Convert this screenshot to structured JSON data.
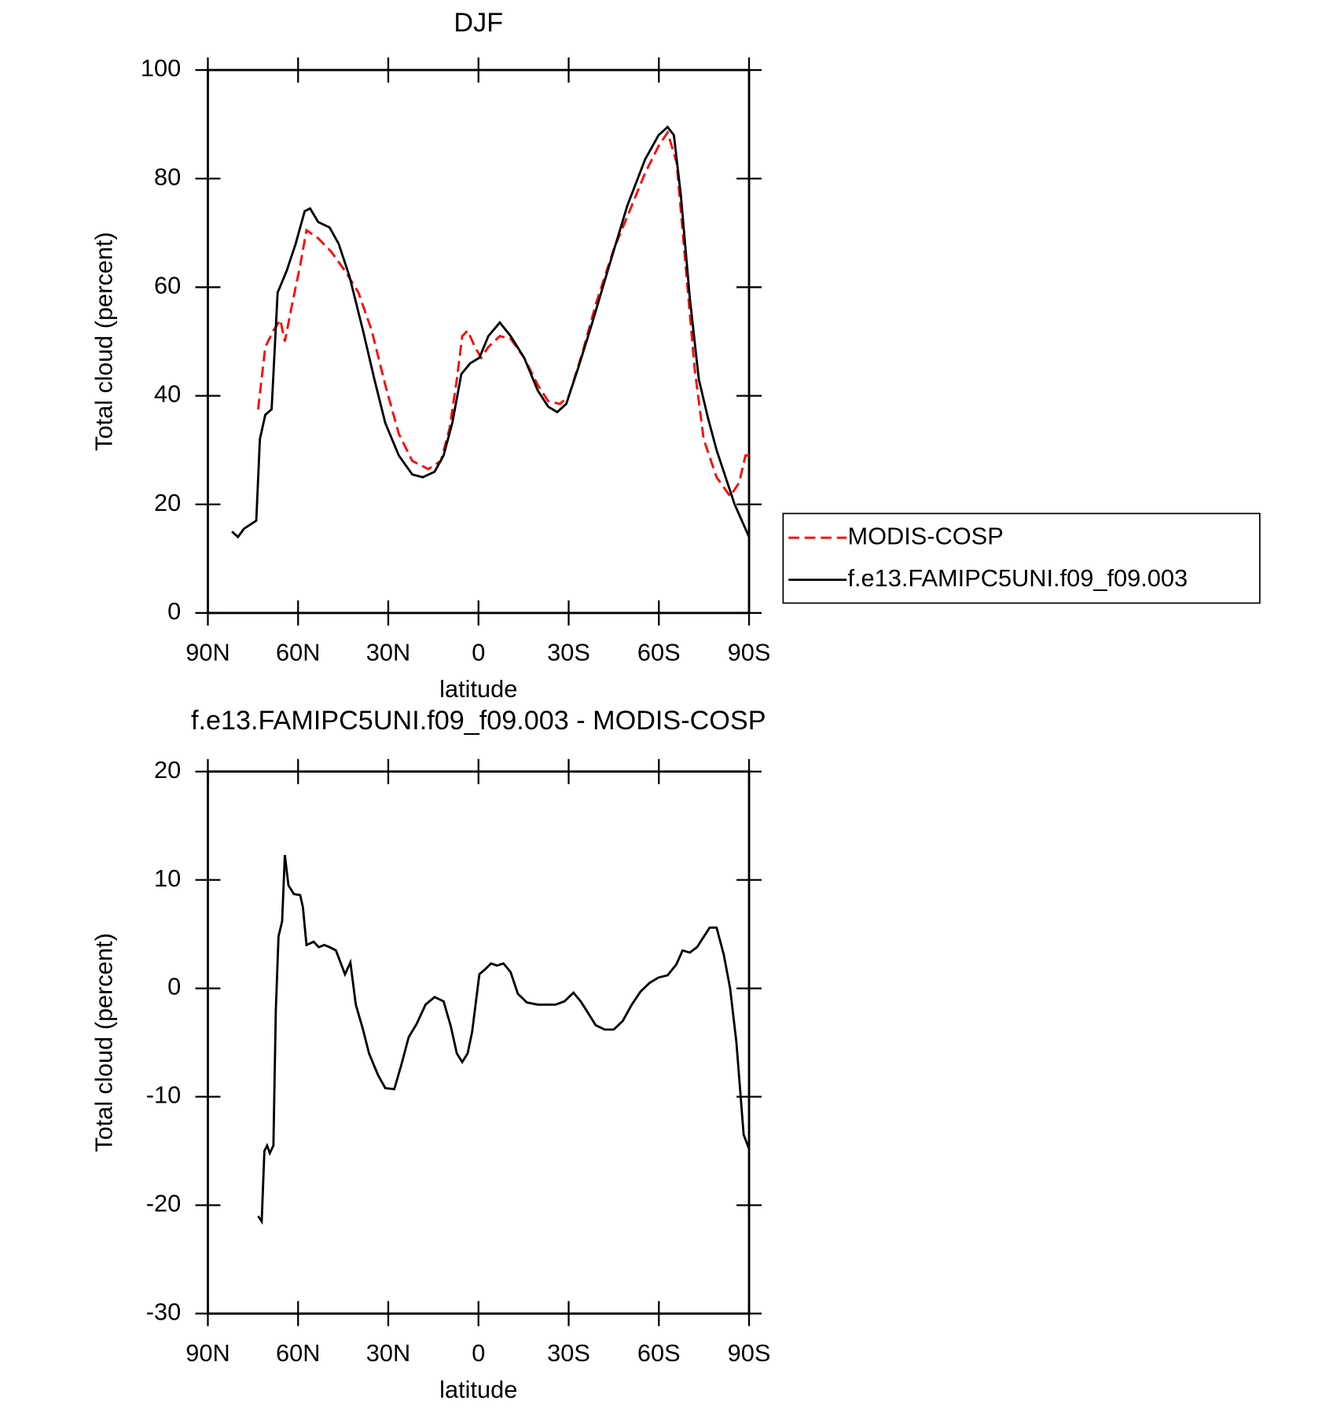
{
  "chart_data": [
    {
      "type": "line",
      "title": "DJF",
      "xlabel": "latitude",
      "ylabel": "Total cloud (percent)",
      "xlim": [
        90,
        -90
      ],
      "xticks": [
        {
          "value": 90,
          "label": "90N"
        },
        {
          "value": 60,
          "label": "60N"
        },
        {
          "value": 30,
          "label": "30N"
        },
        0,
        {
          "value": -30,
          "label": "30S"
        },
        {
          "value": -60,
          "label": "60S"
        },
        {
          "value": -90,
          "label": "90S"
        }
      ],
      "ylim": [
        0,
        100
      ],
      "yticks": [
        0,
        20,
        40,
        60,
        80,
        100
      ],
      "legend": "right",
      "series": [
        {
          "name": "MODIS-COSP",
          "color": "#ff0000",
          "dash": true,
          "x": [
            73.3,
            70.9,
            68.2,
            65.9,
            64.4,
            62.3,
            59.3,
            57.2,
            53.3,
            48.9,
            44.4,
            39.9,
            35.5,
            31,
            26.5,
            22,
            16.7,
            12.5,
            9.6,
            7.2,
            5.4,
            3.6,
            1.2,
            -0.9,
            -3.3,
            -7.1,
            -10.7,
            -15.2,
            -19.7,
            -23.2,
            -27.1,
            -30.1,
            -34.6,
            -39.1,
            -45,
            -49.5,
            -55.4,
            -59.9,
            -62.9,
            -65.9,
            -68.9,
            -71.9,
            -74.9,
            -79.2,
            -83.7,
            -86.7,
            -88.8,
            -90
          ],
          "values": [
            37.5,
            49,
            52,
            54,
            50,
            56,
            64,
            70.5,
            69,
            66.5,
            63,
            59,
            52,
            42,
            33,
            28,
            26.5,
            28,
            34,
            43,
            51,
            52,
            49,
            47,
            49,
            51,
            50.5,
            47,
            42,
            39,
            38.5,
            40,
            48,
            57,
            67,
            73,
            81,
            86,
            88.5,
            83,
            64,
            45,
            32,
            25,
            21.5,
            24,
            29,
            29
          ]
        },
        {
          "name": "f.e13.FAMIPC5UNI.f09_f09.003",
          "color": "#000000",
          "dash": false,
          "x": [
            82,
            80,
            78,
            73.9,
            72.7,
            70.9,
            68.8,
            66.8,
            63.8,
            60.8,
            57.8,
            56,
            53.3,
            49.5,
            46.5,
            42.9,
            38.4,
            34.6,
            31,
            26.5,
            22,
            18.5,
            14.6,
            11.6,
            8.7,
            5.7,
            2.7,
            -0.3,
            -3.3,
            -7.1,
            -10.7,
            -15.2,
            -19.7,
            -23.2,
            -26.2,
            -29.2,
            -33.1,
            -37.6,
            -43.5,
            -49.5,
            -55.4,
            -59.9,
            -62.9,
            -65,
            -67.3,
            -70.3,
            -73.3,
            -76.3,
            -79.2,
            -82.2,
            -85.2,
            -90
          ],
          "values": [
            15,
            14,
            15.5,
            17,
            32,
            36.5,
            37.5,
            59,
            63,
            68,
            74,
            74.5,
            72,
            71,
            68,
            62,
            52,
            43,
            35,
            29,
            25.5,
            25,
            26,
            29,
            35,
            44,
            46,
            47,
            51,
            53.5,
            51,
            47,
            41,
            38,
            37,
            38.5,
            45,
            53,
            64,
            75,
            83.5,
            88,
            89.5,
            88,
            77,
            58,
            43,
            36,
            30,
            25,
            20,
            14
          ]
        }
      ]
    },
    {
      "type": "line",
      "title": "f.e13.FAMIPC5UNI.f09_f09.003 - MODIS-COSP",
      "xlabel": "latitude",
      "ylabel": "Total cloud (percent)",
      "xlim": [
        90,
        -90
      ],
      "xticks": [
        {
          "value": 90,
          "label": "90N"
        },
        {
          "value": 60,
          "label": "60N"
        },
        {
          "value": 30,
          "label": "30N"
        },
        0,
        {
          "value": -30,
          "label": "30S"
        },
        {
          "value": -60,
          "label": "60S"
        },
        {
          "value": -90,
          "label": "90S"
        }
      ],
      "ylim": [
        -30,
        20
      ],
      "yticks": [
        -30,
        -20,
        -10,
        0,
        10,
        20
      ],
      "series": [
        {
          "color": "#000000",
          "dash": false,
          "x": [
            73.3,
            72.1,
            71.2,
            70.3,
            69.4,
            68.2,
            67.4,
            66.5,
            65.3,
            64.4,
            63.2,
            61.4,
            59.3,
            58.4,
            57.2,
            54.8,
            53.1,
            51.3,
            49.5,
            47.4,
            44.4,
            42.6,
            40.8,
            38.4,
            36.4,
            33.4,
            31,
            28,
            25.6,
            23.2,
            20.6,
            17.6,
            14.6,
            11.6,
            9.2,
            7.2,
            5.4,
            3.6,
            2.1,
            -0.3,
            -2.4,
            -4.2,
            -6.2,
            -8.3,
            -10.7,
            -13.1,
            -16.1,
            -19.7,
            -22.6,
            -25.6,
            -28.6,
            -31.6,
            -34,
            -36.3,
            -39,
            -42,
            -45,
            -48,
            -51,
            -53.9,
            -56.9,
            -59.9,
            -62.9,
            -65.8,
            -67.9,
            -70.3,
            -72.7,
            -74.8,
            -76.9,
            -79.2,
            -81.6,
            -83.7,
            -85.8,
            -88.2,
            -90
          ],
          "values": [
            -21,
            -21.5,
            -15,
            -14.5,
            -15.2,
            -14.5,
            -2,
            4.8,
            6.2,
            12.3,
            9.5,
            8.7,
            8.6,
            7.5,
            4,
            4.3,
            3.8,
            4,
            3.8,
            3.5,
            1.3,
            2.4,
            -1.5,
            -3.8,
            -6,
            -8,
            -9.2,
            -9.3,
            -7,
            -4.5,
            -3.3,
            -1.5,
            -0.8,
            -1.2,
            -3.5,
            -6,
            -6.8,
            -6,
            -4,
            1.3,
            1.8,
            2.3,
            2.1,
            2.3,
            1.5,
            -0.5,
            -1.3,
            -1.5,
            -1.5,
            -1.5,
            -1.2,
            -0.4,
            -1.2,
            -2.2,
            -3.4,
            -3.8,
            -3.8,
            -3,
            -1.5,
            -0.3,
            0.5,
            1,
            1.2,
            2.2,
            3.5,
            3.3,
            3.8,
            4.7,
            5.6,
            5.6,
            3.1,
            0,
            -5,
            -13.5,
            -14.8
          ]
        }
      ]
    }
  ]
}
